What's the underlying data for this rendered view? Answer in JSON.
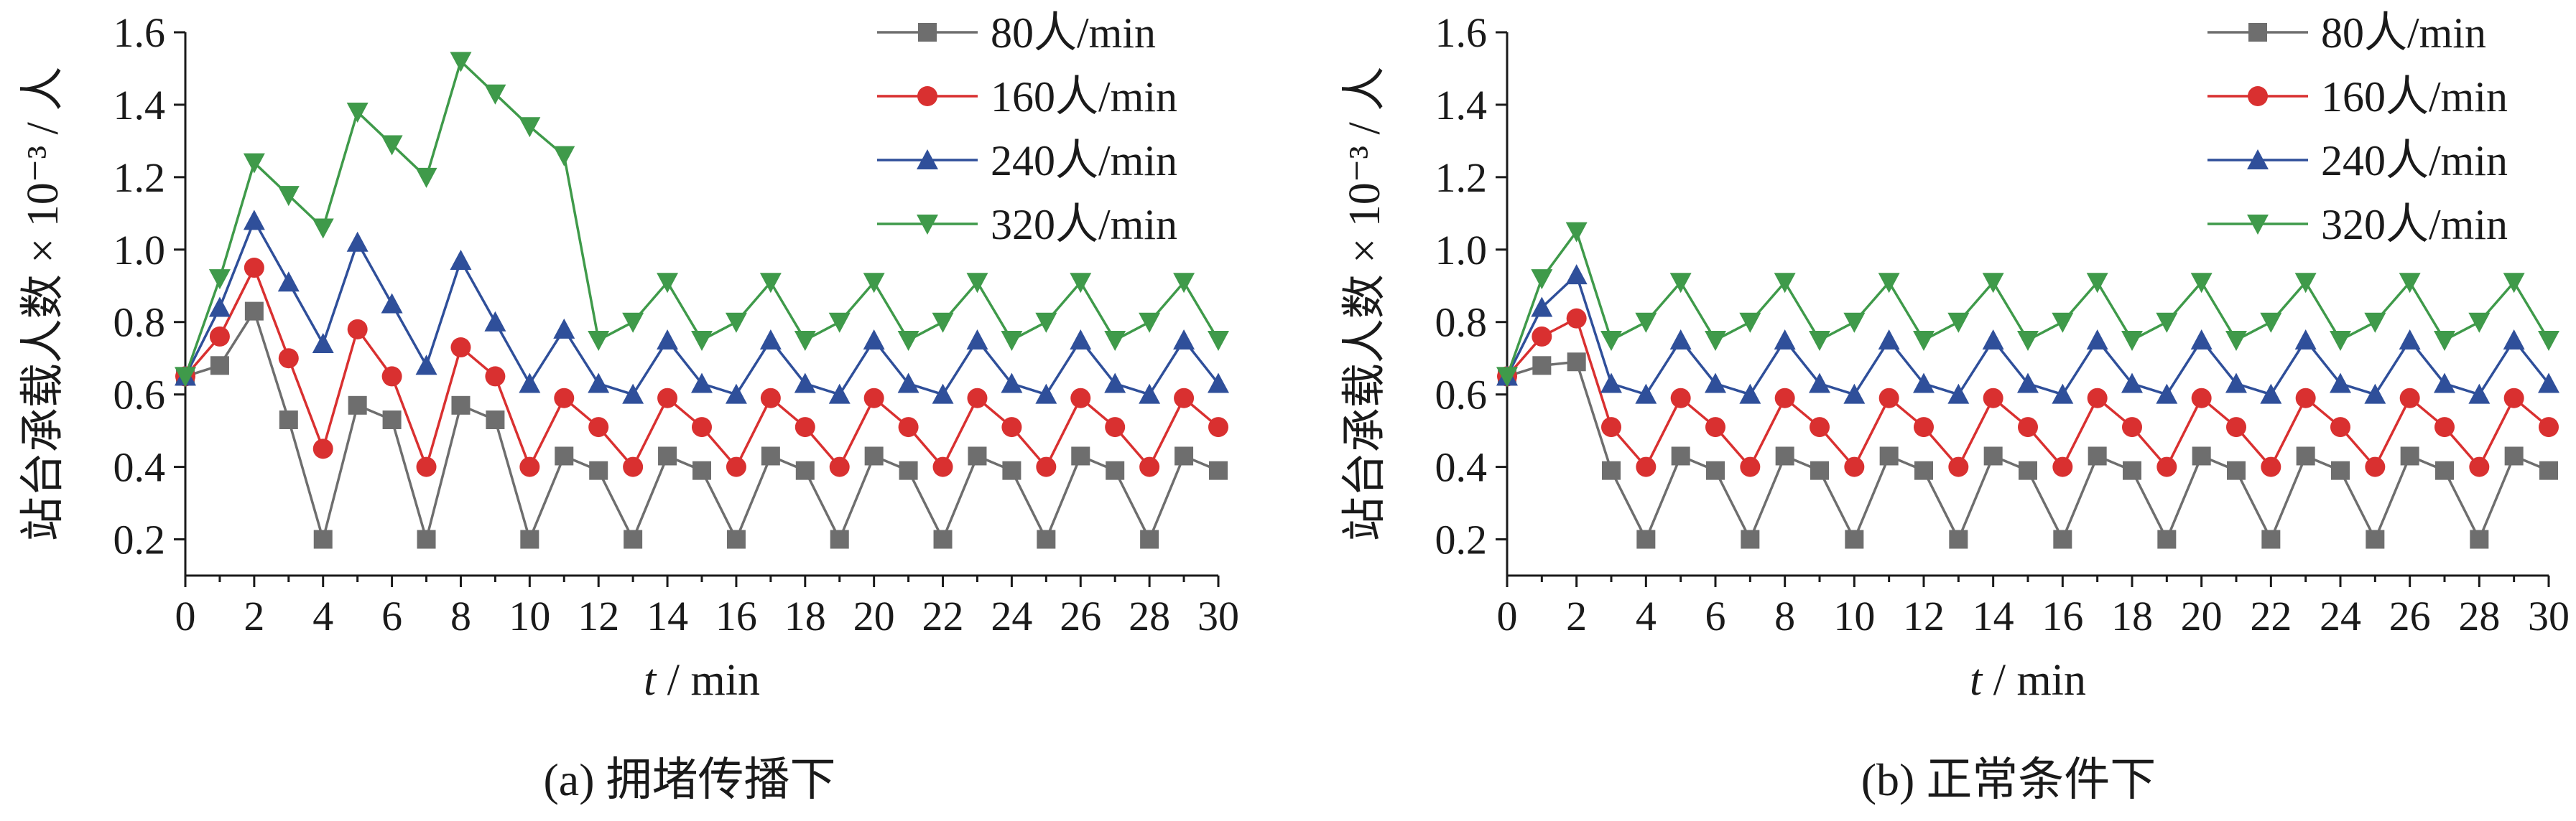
{
  "chart_data": [
    {
      "type": "line",
      "caption": "(a)  拥堵传播下",
      "xlabel": "t / min",
      "ylabel": "站台承载人数 × 10⁻³ / 人",
      "xlim": [
        0,
        30
      ],
      "ylim": [
        0.1,
        1.6
      ],
      "xticks": [
        0,
        2,
        4,
        6,
        8,
        10,
        12,
        14,
        16,
        18,
        20,
        22,
        24,
        26,
        28,
        30
      ],
      "yticks": [
        0.2,
        0.4,
        0.6,
        0.8,
        1.0,
        1.2,
        1.4,
        1.6
      ],
      "ytick_labels": [
        "0.2",
        "0.4",
        "0.6",
        "0.8",
        "1.0",
        "1.2",
        "1.4",
        "1.6"
      ],
      "grid": false,
      "legend_position": "top-right",
      "x": [
        0,
        1,
        2,
        3,
        4,
        5,
        6,
        7,
        8,
        9,
        10,
        11,
        12,
        13,
        14,
        15,
        16,
        17,
        18,
        19,
        20,
        21,
        22,
        23,
        24,
        25,
        26,
        27,
        28,
        29,
        30
      ],
      "series": [
        {
          "name": "80人/min",
          "color": "#6e6e6e",
          "marker": "square",
          "values": [
            0.65,
            0.68,
            0.83,
            0.53,
            0.2,
            0.57,
            0.53,
            0.2,
            0.57,
            0.53,
            0.2,
            0.43,
            0.39,
            0.2,
            0.43,
            0.39,
            0.2,
            0.43,
            0.39,
            0.2,
            0.43,
            0.39,
            0.2,
            0.43,
            0.39,
            0.2,
            0.43,
            0.39,
            0.2,
            0.43,
            0.39
          ]
        },
        {
          "name": "160人/min",
          "color": "#d93030",
          "marker": "circle",
          "values": [
            0.65,
            0.76,
            0.95,
            0.7,
            0.45,
            0.78,
            0.65,
            0.4,
            0.73,
            0.65,
            0.4,
            0.59,
            0.51,
            0.4,
            0.59,
            0.51,
            0.4,
            0.59,
            0.51,
            0.4,
            0.59,
            0.51,
            0.4,
            0.59,
            0.51,
            0.4,
            0.59,
            0.51,
            0.4,
            0.59,
            0.51
          ]
        },
        {
          "name": "240人/min",
          "color": "#2f4f9a",
          "marker": "triangle-up",
          "values": [
            0.65,
            0.84,
            1.08,
            0.91,
            0.74,
            1.02,
            0.85,
            0.68,
            0.97,
            0.8,
            0.63,
            0.78,
            0.63,
            0.6,
            0.75,
            0.63,
            0.6,
            0.75,
            0.63,
            0.6,
            0.75,
            0.63,
            0.6,
            0.75,
            0.63,
            0.6,
            0.75,
            0.63,
            0.6,
            0.75,
            0.63
          ]
        },
        {
          "name": "320人/min",
          "color": "#3f9a4a",
          "marker": "triangle-down",
          "values": [
            0.65,
            0.92,
            1.24,
            1.15,
            1.06,
            1.38,
            1.29,
            1.2,
            1.52,
            1.43,
            1.34,
            1.26,
            0.75,
            0.8,
            0.91,
            0.75,
            0.8,
            0.91,
            0.75,
            0.8,
            0.91,
            0.75,
            0.8,
            0.91,
            0.75,
            0.8,
            0.91,
            0.75,
            0.8,
            0.91,
            0.75
          ]
        }
      ]
    },
    {
      "type": "line",
      "caption": "(b)  正常条件下",
      "xlabel": "t / min",
      "ylabel": "站台承载人数 × 10⁻³ / 人",
      "xlim": [
        0,
        30
      ],
      "ylim": [
        0.1,
        1.6
      ],
      "xticks": [
        0,
        2,
        4,
        6,
        8,
        10,
        12,
        14,
        16,
        18,
        20,
        22,
        24,
        26,
        28,
        30
      ],
      "yticks": [
        0.2,
        0.4,
        0.6,
        0.8,
        1.0,
        1.2,
        1.4,
        1.6
      ],
      "ytick_labels": [
        "0.2",
        "0.4",
        "0.6",
        "0.8",
        "1.0",
        "1.2",
        "1.4",
        "1.6"
      ],
      "grid": false,
      "legend_position": "top-right",
      "x": [
        0,
        1,
        2,
        3,
        4,
        5,
        6,
        7,
        8,
        9,
        10,
        11,
        12,
        13,
        14,
        15,
        16,
        17,
        18,
        19,
        20,
        21,
        22,
        23,
        24,
        25,
        26,
        27,
        28,
        29,
        30
      ],
      "series": [
        {
          "name": "80人/min",
          "color": "#6e6e6e",
          "marker": "square",
          "values": [
            0.65,
            0.68,
            0.69,
            0.39,
            0.2,
            0.43,
            0.39,
            0.2,
            0.43,
            0.39,
            0.2,
            0.43,
            0.39,
            0.2,
            0.43,
            0.39,
            0.2,
            0.43,
            0.39,
            0.2,
            0.43,
            0.39,
            0.2,
            0.43,
            0.39,
            0.2,
            0.43,
            0.39,
            0.2,
            0.43,
            0.39
          ]
        },
        {
          "name": "160人/min",
          "color": "#d93030",
          "marker": "circle",
          "values": [
            0.65,
            0.76,
            0.81,
            0.51,
            0.4,
            0.59,
            0.51,
            0.4,
            0.59,
            0.51,
            0.4,
            0.59,
            0.51,
            0.4,
            0.59,
            0.51,
            0.4,
            0.59,
            0.51,
            0.4,
            0.59,
            0.51,
            0.4,
            0.59,
            0.51,
            0.4,
            0.59,
            0.51,
            0.4,
            0.59,
            0.51
          ]
        },
        {
          "name": "240人/min",
          "color": "#2f4f9a",
          "marker": "triangle-up",
          "values": [
            0.65,
            0.84,
            0.93,
            0.63,
            0.6,
            0.75,
            0.63,
            0.6,
            0.75,
            0.63,
            0.6,
            0.75,
            0.63,
            0.6,
            0.75,
            0.63,
            0.6,
            0.75,
            0.63,
            0.6,
            0.75,
            0.63,
            0.6,
            0.75,
            0.63,
            0.6,
            0.75,
            0.63,
            0.6,
            0.75,
            0.63
          ]
        },
        {
          "name": "320人/min",
          "color": "#3f9a4a",
          "marker": "triangle-down",
          "values": [
            0.65,
            0.92,
            1.05,
            0.75,
            0.8,
            0.91,
            0.75,
            0.8,
            0.91,
            0.75,
            0.8,
            0.91,
            0.75,
            0.8,
            0.91,
            0.75,
            0.8,
            0.91,
            0.75,
            0.8,
            0.91,
            0.75,
            0.8,
            0.91,
            0.75,
            0.8,
            0.91,
            0.75,
            0.8,
            0.91,
            0.75
          ]
        }
      ]
    }
  ]
}
